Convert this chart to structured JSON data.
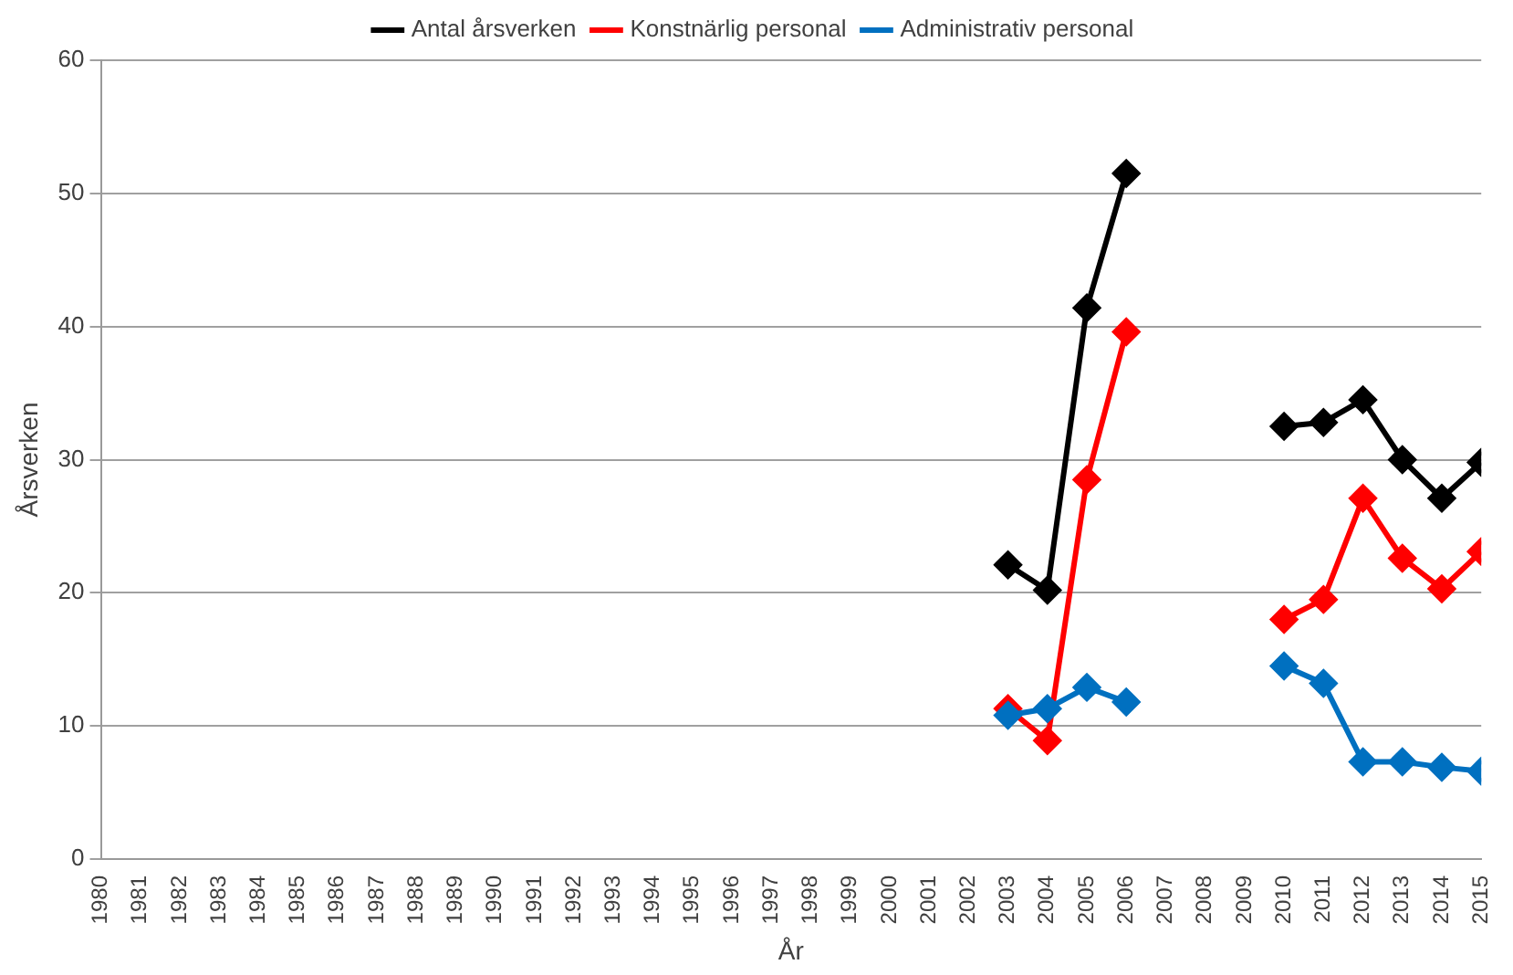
{
  "chart_data": {
    "type": "line",
    "xlabel": "År",
    "ylabel": "Årsverken",
    "x": [
      2003,
      2004,
      2005,
      2006,
      2007,
      2008,
      2009,
      2010,
      2011,
      2012,
      2013,
      2014,
      2015
    ],
    "series": [
      {
        "name": "Antal årsverken",
        "color": "#000000",
        "values": [
          22.1,
          20.2,
          41.4,
          51.5,
          null,
          null,
          null,
          32.5,
          32.8,
          34.5,
          30.0,
          27.1,
          29.8
        ]
      },
      {
        "name": "Konstnärlig personal",
        "color": "#ff0000",
        "values": [
          11.3,
          8.9,
          28.5,
          39.6,
          null,
          null,
          null,
          18.0,
          19.5,
          27.1,
          22.6,
          20.3,
          23.1
        ]
      },
      {
        "name": "Administrativ personal",
        "color": "#0070c0",
        "values": [
          10.8,
          11.3,
          12.9,
          11.8,
          null,
          null,
          null,
          14.5,
          13.2,
          7.3,
          7.3,
          6.9,
          6.6
        ]
      }
    ],
    "xlim": [
      1980,
      2015
    ],
    "xticks": [
      1980,
      1981,
      1982,
      1983,
      1984,
      1985,
      1986,
      1987,
      1988,
      1989,
      1990,
      1991,
      1992,
      1993,
      1994,
      1995,
      1996,
      1997,
      1998,
      1999,
      2000,
      2001,
      2002,
      2003,
      2004,
      2005,
      2006,
      2007,
      2008,
      2009,
      2010,
      2011,
      2012,
      2013,
      2014,
      2015
    ],
    "ylim": [
      0,
      60
    ],
    "yticks": [
      0,
      10,
      20,
      30,
      40,
      50,
      60
    ],
    "grid": "y",
    "legend": "top",
    "marker": "diamond",
    "line_style": "solid"
  }
}
